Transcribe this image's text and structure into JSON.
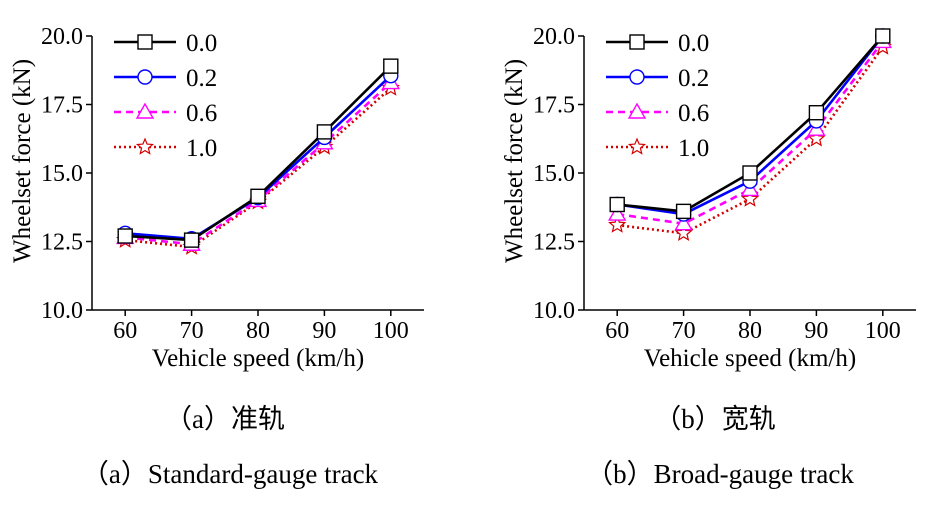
{
  "chart_data": [
    {
      "type": "line",
      "x": [
        60,
        70,
        80,
        90,
        100
      ],
      "xlabel": "Vehicle speed (km/h)",
      "ylabel": "Wheelset force (kN)",
      "ylim": [
        10.0,
        20.0
      ],
      "xlim": [
        55,
        105
      ],
      "yticks": [
        "10.0",
        "12.5",
        "15.0",
        "17.5",
        "20.0"
      ],
      "xticks": [
        "60",
        "70",
        "80",
        "90",
        "100"
      ],
      "legend": "top-left",
      "series": [
        {
          "name": "0.0",
          "values": [
            12.7,
            12.55,
            14.15,
            16.5,
            18.9
          ],
          "color": "#000000",
          "marker": "square",
          "dash": "solid"
        },
        {
          "name": "0.2",
          "values": [
            12.8,
            12.6,
            14.1,
            16.3,
            18.55
          ],
          "color": "#0000ff",
          "marker": "circle",
          "dash": "solid"
        },
        {
          "name": "0.6",
          "values": [
            12.65,
            12.4,
            14.0,
            16.1,
            18.3
          ],
          "color": "#ff00ff",
          "marker": "triangle",
          "dash": "dashed"
        },
        {
          "name": "1.0",
          "values": [
            12.55,
            12.3,
            13.95,
            15.95,
            18.1
          ],
          "color": "#d40000",
          "marker": "star",
          "dash": "dotted"
        }
      ],
      "caption_cn": "（a）准轨",
      "caption_en": "（a）Standard-gauge track"
    },
    {
      "type": "line",
      "x": [
        60,
        70,
        80,
        90,
        100
      ],
      "xlabel": "Vehicle speed (km/h)",
      "ylabel": "Wheelset force (kN)",
      "ylim": [
        10.0,
        20.0
      ],
      "xlim": [
        55,
        105
      ],
      "yticks": [
        "10.0",
        "12.5",
        "15.0",
        "17.5",
        "20.0"
      ],
      "xticks": [
        "60",
        "70",
        "80",
        "90",
        "100"
      ],
      "legend": "top-left",
      "series": [
        {
          "name": "0.0",
          "values": [
            13.85,
            13.6,
            15.0,
            17.2,
            20.0
          ],
          "color": "#000000",
          "marker": "square",
          "dash": "solid"
        },
        {
          "name": "0.2",
          "values": [
            13.85,
            13.5,
            14.7,
            16.9,
            20.0
          ],
          "color": "#0000ff",
          "marker": "circle",
          "dash": "solid"
        },
        {
          "name": "0.6",
          "values": [
            13.5,
            13.15,
            14.4,
            16.6,
            19.8
          ],
          "color": "#ff00ff",
          "marker": "triangle",
          "dash": "dashed"
        },
        {
          "name": "1.0",
          "values": [
            13.1,
            12.8,
            14.05,
            16.25,
            19.6
          ],
          "color": "#d40000",
          "marker": "star",
          "dash": "dotted"
        }
      ],
      "caption_cn": "（b）宽轨",
      "caption_en": "（b）Broad-gauge track"
    }
  ]
}
